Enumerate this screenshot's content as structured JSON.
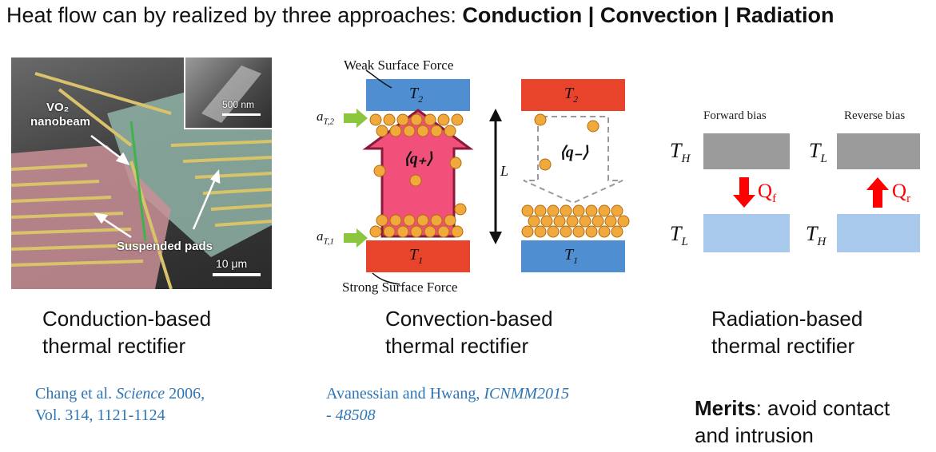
{
  "title": {
    "prefix": "Heat flow can by realized by three approaches: ",
    "approaches": [
      "Conduction",
      " | ",
      "Convection",
      " | ",
      "Radiation"
    ]
  },
  "conduction_panel": {
    "labels": {
      "vo2": "VO₂",
      "nanobeam": "nanobeam",
      "pads": "Suspended pads"
    },
    "inset_scale": "500 nm",
    "scale": "10 μm",
    "caption": [
      "Conduction-based",
      "thermal rectifier"
    ],
    "reference": {
      "line1_a": "Chang et al. ",
      "journal": "Science",
      "line1_b": " 2006,",
      "line2": "Vol. 314, 1121-1124"
    }
  },
  "convection_panel": {
    "top_label": "Weak Surface Force",
    "bottom_label": "Strong Surface Force",
    "T2": "T",
    "T2_sub": "2",
    "T1": "T",
    "T1_sub": "1",
    "aT2": "a",
    "aT2_sub": "T,2",
    "aT1": "a",
    "aT1_sub": "T,1",
    "q_plus": "⟨q₊⟩",
    "q_minus": "⟨q₋⟩",
    "L": "L",
    "caption": [
      "Convection-based",
      "thermal rectifier"
    ],
    "reference": {
      "line1_a": "Avanessian and Hwang, ",
      "journal": "ICNMM2015",
      "line2": "- 48508"
    }
  },
  "radiation_panel": {
    "forward": "Forward bias",
    "reverse": "Reverse bias",
    "forward_top": {
      "T": "T",
      "sub": "H"
    },
    "forward_bottom": {
      "T": "T",
      "sub": "L"
    },
    "reverse_top": {
      "T": "T",
      "sub": "L"
    },
    "reverse_bottom": {
      "T": "T",
      "sub": "H"
    },
    "qf": {
      "Q": "Q",
      "sub": "f"
    },
    "qr": {
      "Q": "Q",
      "sub": "r"
    },
    "caption": [
      "Radiation-based",
      "thermal rectifier"
    ],
    "merits_label": "Merits",
    "merits_text": ": avoid contact",
    "merits_line2": "and intrusion"
  },
  "colors": {
    "hot_red": "#e8432b",
    "cold_blue": "#4f8fd1",
    "arrow_pink": "#f0507a",
    "particle": "#f2a93b",
    "ref_blue": "#2e75b6",
    "radiation_arrow": "#ff0000",
    "green_arrow": "#8cc63f"
  }
}
